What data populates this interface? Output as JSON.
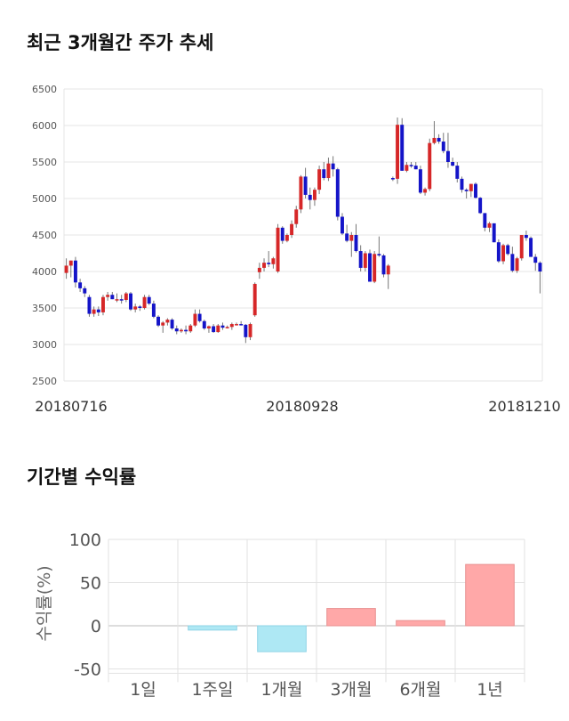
{
  "sections": {
    "price_title": "최근 3개월간 주가 추세",
    "returns_title": "기간별 수익률"
  },
  "colors": {
    "up": "#d62728",
    "down": "#1414c8",
    "positive_bar": "#ffa8a8",
    "negative_bar": "#aee8f4"
  },
  "chart_data": [
    {
      "type": "candlestick",
      "title": "최근 3개월간 주가 추세",
      "ylim": [
        2500,
        6500
      ],
      "yticks": [
        2500,
        3000,
        3500,
        4000,
        4500,
        5000,
        5500,
        6000,
        6500
      ],
      "xtick_labels": [
        "20180716",
        "20180928",
        "20181210"
      ],
      "grid": true,
      "ohlc": [
        [
          3980,
          4180,
          3900,
          4080
        ],
        [
          4080,
          4150,
          3920,
          4150
        ],
        [
          4150,
          4200,
          3780,
          3850
        ],
        [
          3850,
          3900,
          3720,
          3770
        ],
        [
          3770,
          3800,
          3650,
          3700
        ],
        [
          3650,
          3680,
          3380,
          3420
        ],
        [
          3420,
          3520,
          3380,
          3480
        ],
        [
          3480,
          3520,
          3390,
          3440
        ],
        [
          3440,
          3680,
          3400,
          3650
        ],
        [
          3650,
          3720,
          3600,
          3680
        ],
        [
          3680,
          3720,
          3620,
          3620
        ],
        [
          3620,
          3700,
          3580,
          3620
        ],
        [
          3620,
          3680,
          3560,
          3610
        ],
        [
          3610,
          3720,
          3580,
          3700
        ],
        [
          3700,
          3720,
          3460,
          3480
        ],
        [
          3480,
          3560,
          3440,
          3520
        ],
        [
          3520,
          3540,
          3460,
          3500
        ],
        [
          3500,
          3680,
          3480,
          3650
        ],
        [
          3650,
          3680,
          3540,
          3560
        ],
        [
          3560,
          3600,
          3360,
          3380
        ],
        [
          3380,
          3400,
          3240,
          3260
        ],
        [
          3260,
          3320,
          3160,
          3300
        ],
        [
          3300,
          3360,
          3260,
          3340
        ],
        [
          3340,
          3360,
          3200,
          3220
        ],
        [
          3220,
          3260,
          3140,
          3180
        ],
        [
          3180,
          3220,
          3160,
          3200
        ],
        [
          3200,
          3260,
          3140,
          3180
        ],
        [
          3180,
          3280,
          3160,
          3260
        ],
        [
          3260,
          3480,
          3240,
          3420
        ],
        [
          3420,
          3480,
          3300,
          3320
        ],
        [
          3320,
          3340,
          3200,
          3220
        ],
        [
          3220,
          3260,
          3160,
          3250
        ],
        [
          3250,
          3280,
          3160,
          3170
        ],
        [
          3170,
          3280,
          3160,
          3260
        ],
        [
          3260,
          3300,
          3200,
          3230
        ],
        [
          3230,
          3260,
          3220,
          3240
        ],
        [
          3240,
          3300,
          3200,
          3280
        ],
        [
          3280,
          3300,
          3260,
          3280
        ],
        [
          3280,
          3320,
          3260,
          3270
        ],
        [
          3270,
          3280,
          3020,
          3100
        ],
        [
          3100,
          3300,
          3060,
          3280
        ],
        [
          3400,
          3850,
          3380,
          3830
        ],
        [
          3990,
          4120,
          3900,
          4050
        ],
        [
          4050,
          4180,
          4000,
          4120
        ],
        [
          4120,
          4280,
          4060,
          4100
        ],
        [
          4100,
          4200,
          4040,
          4180
        ],
        [
          4000,
          4650,
          3980,
          4600
        ],
        [
          4600,
          4620,
          4380,
          4420
        ],
        [
          4420,
          4520,
          4400,
          4500
        ],
        [
          4500,
          4700,
          4460,
          4650
        ],
        [
          4650,
          4900,
          4600,
          4850
        ],
        [
          4850,
          5320,
          4800,
          5300
        ],
        [
          5300,
          5420,
          5000,
          5050
        ],
        [
          5050,
          5150,
          4850,
          4980
        ],
        [
          4980,
          5150,
          4900,
          5120
        ],
        [
          5120,
          5450,
          5060,
          5400
        ],
        [
          5400,
          5500,
          5250,
          5280
        ],
        [
          5280,
          5560,
          5240,
          5480
        ],
        [
          5480,
          5580,
          5300,
          5400
        ],
        [
          5400,
          5420,
          4700,
          4750
        ],
        [
          4750,
          4800,
          4500,
          4520
        ],
        [
          4520,
          4640,
          4400,
          4420
        ],
        [
          4420,
          4540,
          4200,
          4500
        ],
        [
          4500,
          4650,
          4260,
          4280
        ],
        [
          4280,
          4360,
          4000,
          4050
        ],
        [
          4050,
          4280,
          4000,
          4250
        ],
        [
          4250,
          4300,
          3860,
          3860
        ],
        [
          3860,
          4280,
          3840,
          4240
        ],
        [
          4240,
          4480,
          4200,
          4220
        ],
        [
          4220,
          4240,
          3920,
          3960
        ],
        [
          3960,
          4100,
          3760,
          4080
        ],
        [
          5280,
          5300,
          5240,
          5270
        ],
        [
          5270,
          6110,
          5200,
          6010
        ],
        [
          6010,
          6100,
          5380,
          5380
        ],
        [
          5380,
          5500,
          5360,
          5460
        ],
        [
          5460,
          5500,
          5420,
          5450
        ],
        [
          5450,
          5500,
          5400,
          5400
        ],
        [
          5400,
          5450,
          5060,
          5080
        ],
        [
          5080,
          5150,
          5040,
          5130
        ],
        [
          5130,
          5820,
          5100,
          5760
        ],
        [
          5760,
          6060,
          5740,
          5830
        ],
        [
          5830,
          5880,
          5750,
          5780
        ],
        [
          5780,
          5900,
          5620,
          5650
        ],
        [
          5650,
          5900,
          5420,
          5500
        ],
        [
          5500,
          5560,
          5440,
          5450
        ],
        [
          5450,
          5500,
          5220,
          5270
        ],
        [
          5270,
          5300,
          5080,
          5120
        ],
        [
          5120,
          5140,
          5000,
          5100
        ],
        [
          5100,
          5200,
          5020,
          5200
        ],
        [
          5200,
          5220,
          5000,
          5010
        ],
        [
          5010,
          5020,
          4790,
          4800
        ],
        [
          4800,
          4800,
          4550,
          4600
        ],
        [
          4600,
          4680,
          4540,
          4660
        ],
        [
          4660,
          4660,
          4400,
          4400
        ],
        [
          4400,
          4440,
          4120,
          4140
        ],
        [
          4140,
          4380,
          4100,
          4360
        ],
        [
          4360,
          4380,
          4220,
          4240
        ],
        [
          4240,
          4340,
          3990,
          4010
        ],
        [
          4010,
          4200,
          3980,
          4180
        ],
        [
          4180,
          4500,
          4150,
          4500
        ],
        [
          4500,
          4560,
          4420,
          4460
        ],
        [
          4460,
          4480,
          4200,
          4200
        ],
        [
          4200,
          4240,
          4010,
          4120
        ],
        [
          4120,
          4140,
          3700,
          4000
        ]
      ]
    },
    {
      "type": "bar",
      "title": "기간별 수익률",
      "categories": [
        "1일",
        "1주일",
        "1개월",
        "3개월",
        "6개월",
        "1년"
      ],
      "values": [
        0,
        -5,
        -30,
        20,
        6,
        71
      ],
      "ylabel": "수익률(%)",
      "ylim": [
        -55,
        100
      ],
      "yticks": [
        100,
        50,
        0,
        -50
      ],
      "grid": true
    }
  ]
}
